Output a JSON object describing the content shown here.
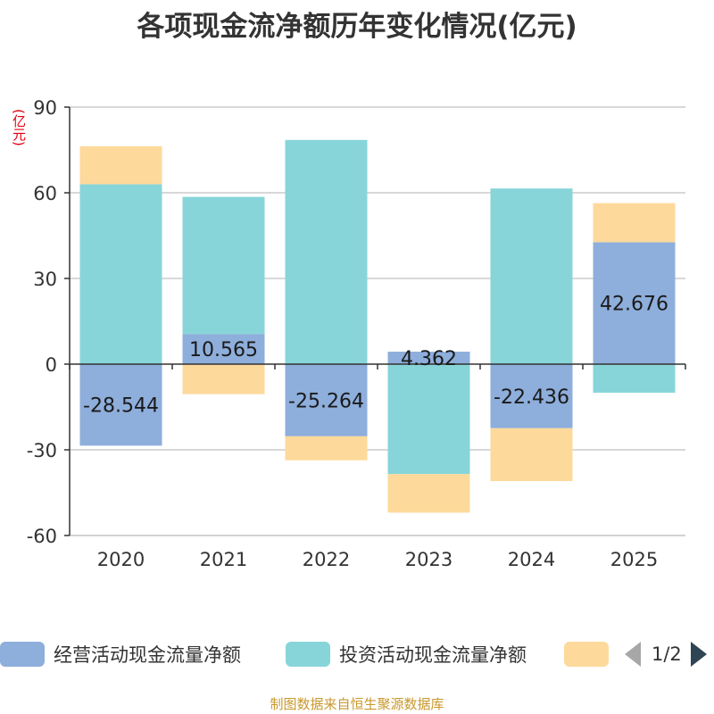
{
  "title": "各项现金流净额历年变化情况(亿元)",
  "unit_label": "(亿元)",
  "source": "制图数据来自恒生聚源数据库",
  "legend": {
    "items": [
      {
        "label": "经营活动现金流量净额",
        "color": "#8eaedb"
      },
      {
        "label": "投资活动现金流量净额",
        "color": "#87d5d9"
      },
      {
        "label": "",
        "color": "#fdd99b"
      }
    ],
    "page_indicator": "1/2"
  },
  "chart_data": {
    "type": "bar",
    "stacked": true,
    "categories": [
      "2020",
      "2021",
      "2022",
      "2023",
      "2024",
      "2025"
    ],
    "series": [
      {
        "name": "经营活动现金流量净额",
        "color": "#8eaedb",
        "values": [
          -28.544,
          10.565,
          -25.264,
          4.362,
          -22.436,
          42.676
        ],
        "labels_shown": true
      },
      {
        "name": "投资活动现金流量净额",
        "color": "#87d5d9",
        "values": [
          63.0,
          48.0,
          78.5,
          -38.5,
          61.5,
          -10.0
        ],
        "labels_shown": false
      },
      {
        "name": "",
        "color": "#fdd99b",
        "values": [
          13.3,
          -10.5,
          -8.4,
          -13.5,
          -18.5,
          13.7
        ],
        "labels_shown": false
      }
    ],
    "y_axis": {
      "min": -60,
      "max": 90,
      "ticks": [
        90,
        60,
        30,
        0,
        -30,
        -60
      ]
    },
    "grid": true
  }
}
